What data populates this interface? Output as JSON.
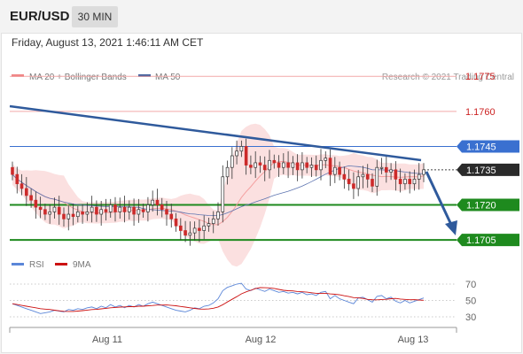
{
  "header": {
    "symbol": "EUR/USD",
    "timeframe": "30 MIN",
    "datetime": "Friday, August 13, 2021 1:46:11 AM CET"
  },
  "legend": {
    "ma20_label": "MA 20 + Bollinger Bands",
    "ma50_label": "MA 50",
    "copyright": "Research © 2021 Trading Central",
    "ma20_color": "#f08080",
    "ma50_color": "#3b5b9a"
  },
  "chart_data": [
    {
      "type": "candlestick",
      "title": "",
      "x_ticks": [
        "Aug 11",
        "Aug 12",
        "Aug 13"
      ],
      "ylim": [
        1.1695,
        1.178
      ],
      "levels": [
        {
          "value": 1.1775,
          "label": "1.1775",
          "kind": "resistance",
          "color": "#e87a7a"
        },
        {
          "value": 1.176,
          "label": "1.1760",
          "kind": "resistance",
          "color": "#e87a7a"
        },
        {
          "value": 1.1745,
          "label": "1.1745",
          "kind": "pivot",
          "color": "#3a70d0"
        },
        {
          "value": 1.1735,
          "label": "1.1735",
          "kind": "last",
          "color": "#2a2a2a"
        },
        {
          "value": 1.172,
          "label": "1.1720",
          "kind": "support",
          "color": "#1e8a1e"
        },
        {
          "value": 1.1705,
          "label": "1.1705",
          "kind": "support",
          "color": "#1e8a1e"
        }
      ],
      "close": [
        1.1733,
        1.1729,
        1.1727,
        1.1724,
        1.1722,
        1.1719,
        1.1718,
        1.1716,
        1.1717,
        1.1719,
        1.1716,
        1.1714,
        1.1716,
        1.1715,
        1.1717,
        1.1716,
        1.1717,
        1.1719,
        1.1716,
        1.1718,
        1.1717,
        1.172,
        1.1717,
        1.1719,
        1.1717,
        1.1719,
        1.1716,
        1.1718,
        1.1717,
        1.172,
        1.1722,
        1.172,
        1.1718,
        1.1716,
        1.1714,
        1.1711,
        1.1709,
        1.1707,
        1.1708,
        1.171,
        1.1709,
        1.1711,
        1.1712,
        1.1714,
        1.1717,
        1.1732,
        1.1736,
        1.1741,
        1.1743,
        1.1745,
        1.1737,
        1.1736,
        1.1738,
        1.1737,
        1.1735,
        1.1739,
        1.1738,
        1.1736,
        1.1738,
        1.1736,
        1.1738,
        1.1735,
        1.1738,
        1.1736,
        1.1737,
        1.1735,
        1.1739,
        1.174,
        1.1733,
        1.1736,
        1.1733,
        1.1731,
        1.1729,
        1.1727,
        1.1732,
        1.1733,
        1.1731,
        1.1728,
        1.1736,
        1.1736,
        1.1734,
        1.1735,
        1.1731,
        1.1729,
        1.1731,
        1.1729,
        1.1731,
        1.1733,
        1.1735
      ],
      "rsi": [
        46,
        44,
        42,
        40,
        38,
        36,
        34,
        35,
        36,
        38,
        37,
        36,
        39,
        38,
        40,
        39,
        41,
        42,
        40,
        43,
        41,
        45,
        42,
        44,
        41,
        44,
        42,
        45,
        43,
        46,
        48,
        46,
        44,
        42,
        40,
        38,
        37,
        36,
        38,
        41,
        40,
        43,
        44,
        47,
        52,
        62,
        66,
        68,
        70,
        71,
        64,
        62,
        65,
        63,
        61,
        64,
        62,
        60,
        61,
        59,
        60,
        58,
        60,
        57,
        58,
        56,
        60,
        61,
        52,
        56,
        52,
        50,
        48,
        46,
        53,
        54,
        51,
        48,
        55,
        56,
        52,
        54,
        49,
        47,
        50,
        47,
        49,
        51,
        53
      ],
      "rsi_levels": [
        70,
        50,
        30
      ],
      "rsi_legend": [
        "RSI",
        "9MA"
      ],
      "rsi_colors": {
        "rsi": "#5b86d8",
        "ma": "#cc1111"
      }
    }
  ]
}
